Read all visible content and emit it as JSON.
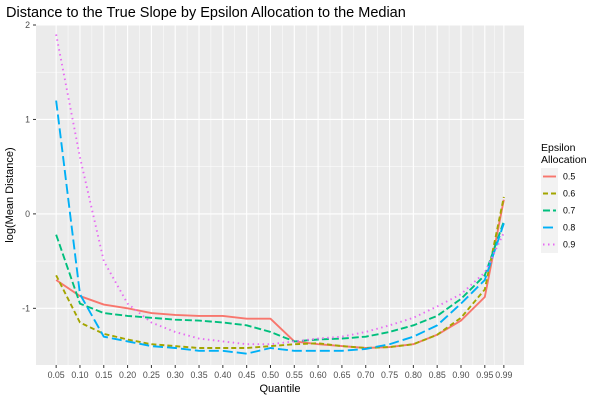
{
  "chart_data": {
    "type": "line",
    "title": "Distance to the True Slope by Epsilon Allocation to the Median",
    "xlabel": "Quantile",
    "ylabel": "log(Mean Distance)",
    "xlim": [
      0.05,
      0.99
    ],
    "ylim": [
      -1.6,
      2.0
    ],
    "x_ticks": [
      0.05,
      0.1,
      0.15,
      0.2,
      0.25,
      0.3,
      0.35,
      0.4,
      0.45,
      0.5,
      0.55,
      0.6,
      0.65,
      0.7,
      0.75,
      0.8,
      0.85,
      0.9,
      0.95,
      0.99
    ],
    "x_tick_labels": [
      "0.05",
      "0.10",
      "0.15",
      "0.20",
      "0.25",
      "0.30",
      "0.35",
      "0.40",
      "0.45",
      "0.50",
      "0.55",
      "0.60",
      "0.65",
      "0.70",
      "0.75",
      "0.80",
      "0.85",
      "0.90",
      "0.95",
      "0.99"
    ],
    "y_ticks": [
      -1,
      0,
      1,
      2
    ],
    "y_tick_labels": [
      "-1",
      "0",
      "1",
      "2"
    ],
    "legend": {
      "title_line1": "Epsilon",
      "title_line2": "Allocation",
      "position": "right"
    },
    "grid": true,
    "x": [
      0.05,
      0.1,
      0.15,
      0.2,
      0.25,
      0.3,
      0.35,
      0.4,
      0.45,
      0.5,
      0.55,
      0.6,
      0.65,
      0.7,
      0.75,
      0.8,
      0.85,
      0.9,
      0.95,
      0.99
    ],
    "series": [
      {
        "name": "0.5",
        "color": "#F8766D",
        "dash": "solid",
        "values": [
          -0.7,
          -0.87,
          -0.96,
          -1.0,
          -1.05,
          -1.07,
          -1.08,
          -1.08,
          -1.11,
          -1.11,
          -1.35,
          -1.38,
          -1.4,
          -1.42,
          -1.41,
          -1.38,
          -1.28,
          -1.13,
          -0.88,
          0.15
        ]
      },
      {
        "name": "0.6",
        "color": "#A3A500",
        "dash": "5,3",
        "values": [
          -0.65,
          -1.15,
          -1.27,
          -1.33,
          -1.38,
          -1.4,
          -1.42,
          -1.42,
          -1.42,
          -1.4,
          -1.38,
          -1.37,
          -1.4,
          -1.42,
          -1.41,
          -1.38,
          -1.28,
          -1.1,
          -0.8,
          0.18
        ]
      },
      {
        "name": "0.7",
        "color": "#00BF7D",
        "dash": "7,3",
        "values": [
          -0.22,
          -0.95,
          -1.05,
          -1.08,
          -1.1,
          -1.12,
          -1.13,
          -1.15,
          -1.18,
          -1.25,
          -1.35,
          -1.33,
          -1.32,
          -1.3,
          -1.25,
          -1.18,
          -1.08,
          -0.9,
          -0.65,
          -0.08
        ]
      },
      {
        "name": "0.8",
        "color": "#00B0F6",
        "dash": "10,4",
        "values": [
          1.2,
          -0.85,
          -1.3,
          -1.35,
          -1.4,
          -1.42,
          -1.45,
          -1.45,
          -1.48,
          -1.42,
          -1.45,
          -1.45,
          -1.45,
          -1.43,
          -1.38,
          -1.3,
          -1.18,
          -0.95,
          -0.7,
          -0.1
        ]
      },
      {
        "name": "0.9",
        "color": "#E76BF3",
        "dash": "1.5,3.5",
        "values": [
          1.9,
          0.6,
          -0.5,
          -0.95,
          -1.15,
          -1.25,
          -1.32,
          -1.35,
          -1.38,
          -1.38,
          -1.35,
          -1.32,
          -1.3,
          -1.25,
          -1.18,
          -1.1,
          -0.98,
          -0.85,
          -0.62,
          -0.2
        ]
      }
    ]
  }
}
